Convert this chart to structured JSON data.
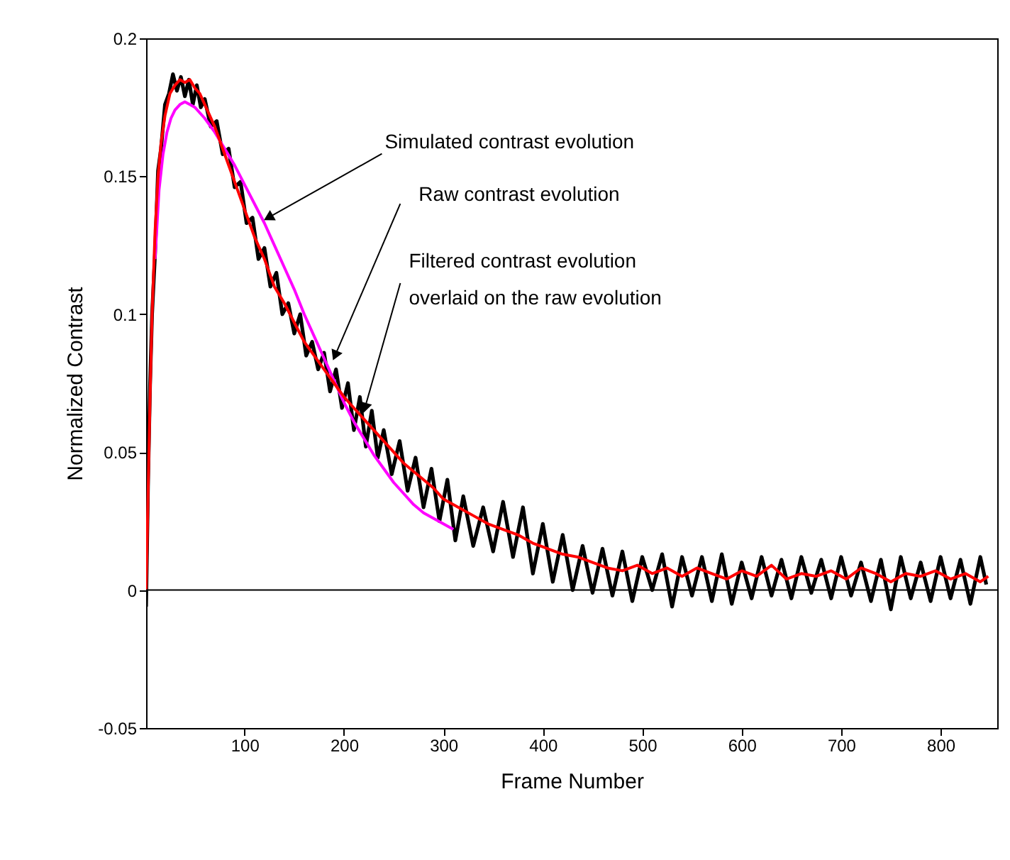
{
  "chart_data": {
    "type": "line",
    "xlabel": "Frame Number",
    "ylabel": "Normalized Contrast",
    "xlim": [
      1,
      857
    ],
    "xticks": [
      100,
      200,
      300,
      400,
      500,
      600,
      700,
      800
    ],
    "ylim": [
      -0.05,
      0.2
    ],
    "yticks": [
      -0.05,
      0,
      0.05,
      0.1,
      0.15,
      0.2
    ],
    "grid": false,
    "marker": "none",
    "line_style": "solid",
    "ref_lines": [
      {
        "axis": "y",
        "value": 0,
        "color": "#000000"
      }
    ],
    "annotations": [
      {
        "text": "Simulated contrast evolution",
        "x": 124,
        "y": 0.135
      },
      {
        "text": "Raw contrast evolution",
        "x": 191,
        "y": 0.085
      },
      {
        "text": "Filtered contrast evolution\noverlaid on the raw evolution",
        "x": 221,
        "y": 0.066
      }
    ],
    "series": [
      {
        "color": "#000000",
        "x": [
          1,
          3,
          5,
          7,
          10,
          13,
          16,
          20,
          24,
          28,
          32,
          36,
          40,
          44,
          48,
          52,
          56,
          60,
          66,
          72,
          78,
          84,
          90,
          96,
          102,
          108,
          114,
          120,
          126,
          132,
          138,
          144,
          150,
          156,
          162,
          168,
          174,
          180,
          186,
          192,
          198,
          204,
          210,
          216,
          222,
          228,
          234,
          240,
          248,
          256,
          264,
          272,
          280,
          288,
          296,
          304,
          312,
          320,
          330,
          340,
          350,
          360,
          370,
          380,
          390,
          400,
          410,
          420,
          430,
          440,
          450,
          460,
          470,
          480,
          490,
          500,
          510,
          520,
          530,
          540,
          550,
          560,
          570,
          580,
          590,
          600,
          610,
          620,
          630,
          640,
          650,
          660,
          670,
          680,
          690,
          700,
          710,
          720,
          730,
          740,
          750,
          760,
          770,
          780,
          790,
          800,
          810,
          820,
          830,
          840,
          846
        ],
        "values": [
          -0.006,
          0.04,
          0.075,
          0.1,
          0.122,
          0.152,
          0.16,
          0.176,
          0.18,
          0.187,
          0.181,
          0.186,
          0.179,
          0.185,
          0.176,
          0.183,
          0.175,
          0.178,
          0.168,
          0.17,
          0.158,
          0.16,
          0.146,
          0.148,
          0.133,
          0.135,
          0.12,
          0.124,
          0.11,
          0.115,
          0.1,
          0.104,
          0.093,
          0.1,
          0.085,
          0.09,
          0.08,
          0.086,
          0.072,
          0.08,
          0.066,
          0.075,
          0.058,
          0.07,
          0.052,
          0.065,
          0.048,
          0.058,
          0.042,
          0.054,
          0.036,
          0.048,
          0.03,
          0.044,
          0.025,
          0.04,
          0.018,
          0.034,
          0.016,
          0.03,
          0.014,
          0.032,
          0.012,
          0.03,
          0.006,
          0.024,
          0.003,
          0.02,
          0.0,
          0.016,
          -0.001,
          0.015,
          -0.002,
          0.014,
          -0.004,
          0.012,
          0.0,
          0.013,
          -0.006,
          0.012,
          -0.002,
          0.012,
          -0.004,
          0.013,
          -0.005,
          0.01,
          -0.003,
          0.012,
          -0.002,
          0.011,
          -0.003,
          0.012,
          -0.001,
          0.011,
          -0.003,
          0.012,
          -0.002,
          0.01,
          -0.004,
          0.011,
          -0.007,
          0.012,
          -0.003,
          0.01,
          -0.004,
          0.012,
          -0.003,
          0.011,
          -0.005,
          0.012,
          0.002
        ]
      },
      {
        "color": "#ff00ff",
        "x": [
          10,
          14,
          18,
          22,
          26,
          30,
          35,
          40,
          45,
          50,
          55,
          60,
          70,
          80,
          90,
          100,
          110,
          120,
          130,
          140,
          150,
          160,
          170,
          180,
          190,
          200,
          210,
          220,
          230,
          240,
          250,
          260,
          270,
          280,
          290,
          300,
          310
        ],
        "values": [
          0.12,
          0.145,
          0.158,
          0.166,
          0.171,
          0.174,
          0.176,
          0.177,
          0.176,
          0.175,
          0.173,
          0.171,
          0.166,
          0.16,
          0.154,
          0.147,
          0.14,
          0.133,
          0.125,
          0.117,
          0.109,
          0.1,
          0.092,
          0.084,
          0.076,
          0.068,
          0.061,
          0.055,
          0.049,
          0.044,
          0.039,
          0.035,
          0.031,
          0.028,
          0.026,
          0.024,
          0.022
        ]
      },
      {
        "color": "#ff0000",
        "x": [
          1,
          3,
          5,
          7,
          10,
          13,
          16,
          20,
          25,
          30,
          35,
          40,
          45,
          50,
          55,
          60,
          70,
          80,
          90,
          100,
          110,
          120,
          130,
          140,
          150,
          160,
          170,
          180,
          190,
          200,
          210,
          220,
          230,
          240,
          250,
          260,
          270,
          280,
          290,
          300,
          315,
          330,
          345,
          360,
          375,
          390,
          405,
          420,
          435,
          450,
          465,
          480,
          495,
          510,
          525,
          540,
          555,
          570,
          585,
          600,
          615,
          630,
          645,
          660,
          675,
          690,
          705,
          720,
          735,
          750,
          765,
          780,
          795,
          810,
          825,
          840,
          848
        ],
        "values": [
          0,
          0.035,
          0.07,
          0.1,
          0.13,
          0.15,
          0.162,
          0.172,
          0.18,
          0.183,
          0.185,
          0.184,
          0.185,
          0.182,
          0.18,
          0.176,
          0.168,
          0.158,
          0.148,
          0.138,
          0.128,
          0.12,
          0.11,
          0.104,
          0.097,
          0.09,
          0.085,
          0.08,
          0.075,
          0.07,
          0.066,
          0.062,
          0.058,
          0.054,
          0.05,
          0.046,
          0.043,
          0.04,
          0.037,
          0.033,
          0.03,
          0.027,
          0.024,
          0.022,
          0.02,
          0.017,
          0.015,
          0.013,
          0.012,
          0.01,
          0.008,
          0.007,
          0.009,
          0.006,
          0.008,
          0.005,
          0.008,
          0.006,
          0.004,
          0.007,
          0.005,
          0.009,
          0.004,
          0.006,
          0.005,
          0.007,
          0.004,
          0.008,
          0.006,
          0.003,
          0.006,
          0.005,
          0.007,
          0.004,
          0.006,
          0.003,
          0.005
        ]
      }
    ]
  }
}
